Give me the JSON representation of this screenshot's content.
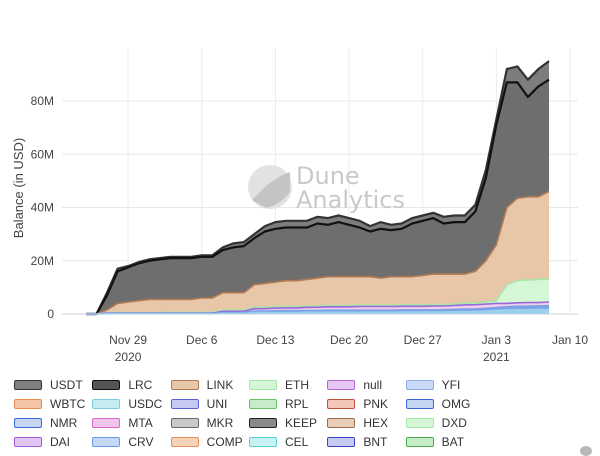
{
  "chart_data": {
    "type": "area",
    "stacked": true,
    "title": "",
    "ylabel": "Balance (in USD)",
    "xlabel": "",
    "ylim": [
      0,
      100
    ],
    "yunit": "M",
    "yticks": [
      {
        "value": 0,
        "label": "0"
      },
      {
        "value": 20,
        "label": "20M"
      },
      {
        "value": 40,
        "label": "40M"
      },
      {
        "value": 60,
        "label": "60M"
      },
      {
        "value": 80,
        "label": "80M"
      }
    ],
    "xticks": [
      {
        "day": 2,
        "label": "Nov 29",
        "sublabel": "2020"
      },
      {
        "day": 9,
        "label": "Dec 6",
        "sublabel": ""
      },
      {
        "day": 16,
        "label": "Dec 13",
        "sublabel": ""
      },
      {
        "day": 23,
        "label": "Dec 20",
        "sublabel": ""
      },
      {
        "day": 30,
        "label": "Dec 27",
        "sublabel": ""
      },
      {
        "day": 37,
        "label": "Jan 3",
        "sublabel": "2021"
      },
      {
        "day": 44,
        "label": "Jan 10",
        "sublabel": ""
      }
    ],
    "x": [
      -2,
      -1,
      0,
      1,
      2,
      3,
      4,
      5,
      6,
      7,
      8,
      9,
      10,
      11,
      12,
      13,
      14,
      15,
      16,
      17,
      18,
      19,
      20,
      21,
      22,
      23,
      24,
      25,
      26,
      27,
      28,
      29,
      30,
      31,
      32,
      33,
      34,
      35,
      36,
      37,
      38,
      39,
      40,
      41,
      42,
      43,
      44
    ],
    "top_series": [
      {
        "name": "USDT",
        "color": "#7a7a7a",
        "line": "#333333",
        "cumulative": [
          0,
          0,
          8,
          17,
          18,
          19.5,
          20.5,
          21,
          21.5,
          21.5,
          21.5,
          22,
          22,
          25,
          26.5,
          27,
          30,
          33,
          34.5,
          35,
          35,
          35,
          36.5,
          36,
          37,
          36,
          35,
          33,
          34.5,
          33.5,
          34,
          36,
          37,
          38,
          36.5,
          37,
          37,
          41,
          54,
          73,
          92,
          93,
          88,
          92,
          95
        ]
      },
      {
        "name": "LRC",
        "color": "#7a7a7a",
        "line": "#111111",
        "cumulative": [
          0,
          0,
          7,
          16,
          17.5,
          19,
          20,
          20.5,
          21,
          21,
          21,
          21.5,
          21.5,
          24,
          25,
          25.5,
          28.5,
          31,
          32,
          32.5,
          32.5,
          32.5,
          34,
          33.5,
          34.5,
          33.5,
          32.5,
          31,
          32,
          31.5,
          32,
          34,
          35,
          36,
          34,
          34.5,
          34.5,
          38.5,
          51,
          71,
          87,
          87,
          81.5,
          85.5,
          88
        ]
      }
    ],
    "mid_series": [
      {
        "name": "LINK",
        "color": "#e8c7a8",
        "line": "#b07a55",
        "cumulative": [
          0,
          0,
          1.5,
          4,
          4.5,
          5,
          5.5,
          5.5,
          5.5,
          5.5,
          5.5,
          6,
          6,
          8,
          8,
          8,
          11,
          11.5,
          12,
          12.5,
          12.5,
          13,
          13.5,
          14,
          14,
          14,
          14,
          14,
          13.5,
          14,
          14,
          14,
          14.5,
          15,
          15,
          15,
          15,
          16,
          20,
          26,
          40,
          43.5,
          44,
          44,
          46
        ]
      },
      {
        "name": "ETH",
        "color": "#d6f7d6",
        "line": "#a6e6a6",
        "cumulative": [
          0,
          0,
          0.5,
          0.5,
          0.5,
          0.5,
          0.5,
          0.5,
          0.6,
          0.6,
          0.6,
          0.6,
          0.6,
          1.5,
          1.5,
          1.5,
          2.5,
          2.5,
          2.7,
          2.8,
          2.8,
          3,
          3,
          3.2,
          3.2,
          3.2,
          3.3,
          3.3,
          3.3,
          3.3,
          3.4,
          3.4,
          3.4,
          3.5,
          3.5,
          3.8,
          4,
          4.2,
          4.5,
          5,
          11,
          12.5,
          12.8,
          13,
          13.2
        ]
      },
      {
        "name": "null",
        "color": "#f2cfe8",
        "line": "#9a66dd",
        "cumulative": [
          0,
          0,
          0.3,
          0.3,
          0.3,
          0.3,
          0.3,
          0.3,
          0.3,
          0.3,
          0.3,
          0.3,
          0.3,
          1,
          1,
          1,
          2,
          2,
          2.2,
          2.3,
          2.3,
          2.5,
          2.5,
          2.7,
          2.7,
          2.7,
          2.8,
          2.8,
          2.8,
          2.8,
          2.9,
          2.9,
          2.9,
          3,
          3,
          3.2,
          3.4,
          3.5,
          3.7,
          4,
          4,
          4.2,
          4.3,
          4.3,
          4.5
        ]
      }
    ],
    "low_series": [
      {
        "name": "YFI",
        "color": "#7ba0e6",
        "cumulative": [
          0,
          0,
          0.2,
          0.2,
          0.2,
          0.2,
          0.2,
          0.2,
          0.2,
          0.2,
          0.2,
          0.2,
          0.2,
          0.6,
          0.6,
          0.6,
          1.2,
          1.2,
          1.3,
          1.3,
          1.3,
          1.4,
          1.4,
          1.5,
          1.5,
          1.5,
          1.5,
          1.5,
          1.5,
          1.5,
          1.6,
          1.6,
          1.6,
          1.6,
          1.7,
          1.8,
          1.9,
          2,
          2.2,
          2.5,
          2.8,
          3,
          3,
          3.1,
          3.2
        ]
      },
      {
        "name": "CRV",
        "color": "#9ad0ec",
        "cumulative": [
          0,
          0,
          0.1,
          0.1,
          0.1,
          0.1,
          0.1,
          0.1,
          0.1,
          0.1,
          0.1,
          0.1,
          0.1,
          0.3,
          0.3,
          0.3,
          0.6,
          0.6,
          0.6,
          0.6,
          0.6,
          0.7,
          0.7,
          0.7,
          0.7,
          0.7,
          0.7,
          0.7,
          0.7,
          0.7,
          0.8,
          0.8,
          0.8,
          0.8,
          0.8,
          0.9,
          1,
          1,
          1.2,
          1.4,
          1.6,
          1.7,
          1.7,
          1.8,
          1.8
        ]
      }
    ],
    "legend": {
      "placement": "bottom",
      "rows": [
        [
          {
            "name": "USDT",
            "color": "#7f7f7f",
            "border": "#333333"
          },
          {
            "name": "LRC",
            "color": "#555555",
            "border": "#111111"
          },
          {
            "name": "LINK",
            "color": "#e8c7a8",
            "border": "#b07a55"
          },
          {
            "name": "ETH",
            "color": "#d6f7d6",
            "border": "#a6e6a6"
          },
          {
            "name": "null",
            "color": "#e6c6f2",
            "border": "#b06ad8"
          },
          {
            "name": "YFI",
            "color": "#c9d8f7",
            "border": "#8aa9e6"
          }
        ],
        [
          {
            "name": "WBTC",
            "color": "#f5c6a6",
            "border": "#e68a4e"
          },
          {
            "name": "USDC",
            "color": "#c6ecf2",
            "border": "#7ad0dd"
          },
          {
            "name": "UNI",
            "color": "#c6c9f2",
            "border": "#5b63d6"
          },
          {
            "name": "RPL",
            "color": "#c9ebc9",
            "border": "#6cc06c"
          },
          {
            "name": "PNK",
            "color": "#f2c6b8",
            "border": "#c0503a"
          },
          {
            "name": "OMG",
            "color": "#c6d5f2",
            "border": "#3a66d6"
          }
        ],
        [
          {
            "name": "NMR",
            "color": "#c6d5f2",
            "border": "#3a6adb"
          },
          {
            "name": "MTA",
            "color": "#f2c6ec",
            "border": "#d86ac8"
          },
          {
            "name": "MKR",
            "color": "#c9c9c9",
            "border": "#6a6a6a"
          },
          {
            "name": "KEEP",
            "color": "#8a8a8a",
            "border": "#222222"
          },
          {
            "name": "HEX",
            "color": "#e8cdb8",
            "border": "#9a6a4a"
          },
          {
            "name": "DXD",
            "color": "#d6f7d6",
            "border": "#a6e6a6"
          }
        ],
        [
          {
            "name": "DAI",
            "color": "#e0c6f2",
            "border": "#a45ad6"
          },
          {
            "name": "CRV",
            "color": "#c6d8f7",
            "border": "#6a9ae6"
          },
          {
            "name": "COMP",
            "color": "#f5d2b8",
            "border": "#e6905a"
          },
          {
            "name": "CEL",
            "color": "#c6f2f2",
            "border": "#5ad0d0"
          },
          {
            "name": "BNT",
            "color": "#c6c9f2",
            "border": "#3a44c8"
          },
          {
            "name": "BAT",
            "color": "#c6ecc6",
            "border": "#4aa84a"
          }
        ]
      ]
    }
  },
  "watermark": {
    "line1": "Dune",
    "line2": "Analytics"
  }
}
